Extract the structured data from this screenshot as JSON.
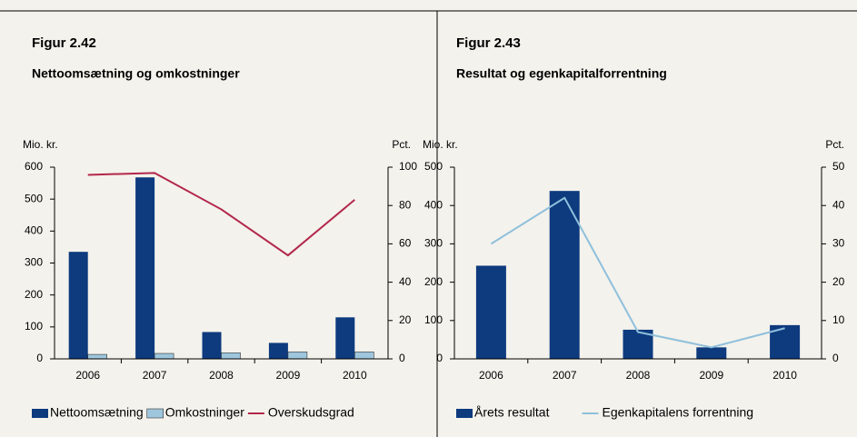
{
  "chart_data": [
    {
      "type": "bar",
      "title": "Figur 2.42",
      "subtitle": "Nettoomsætning og omkostninger",
      "ylabel": "Mio. kr.",
      "y2label": "Pct.",
      "categories": [
        "2006",
        "2007",
        "2008",
        "2009",
        "2010"
      ],
      "series": [
        {
          "name": "Nettoomsætning",
          "color": "#0e3a7e",
          "values": [
            335,
            568,
            84,
            50,
            130
          ]
        },
        {
          "name": "Omkostninger",
          "color": "#9ec6dd",
          "values": [
            14,
            17,
            19,
            22,
            22
          ]
        },
        {
          "name": "Overskudsgrad",
          "color": "#b3264b",
          "type": "line",
          "axis": "y2",
          "values": [
            96,
            97,
            78,
            54,
            83
          ]
        }
      ],
      "ylim": [
        0,
        600
      ],
      "yticks": [
        0,
        100,
        200,
        300,
        400,
        500,
        600
      ],
      "y2lim": [
        0,
        100
      ],
      "y2ticks": [
        0,
        20,
        40,
        60,
        80,
        100
      ],
      "grid": false
    },
    {
      "type": "bar",
      "title": "Figur 2.43",
      "subtitle": "Resultat og egenkapitalforrentning",
      "ylabel": "Mio. kr.",
      "y2label": "Pct.",
      "categories": [
        "2006",
        "2007",
        "2008",
        "2009",
        "2010"
      ],
      "series": [
        {
          "name": "Årets resultat",
          "color": "#0e3a7e",
          "values": [
            243,
            438,
            76,
            30,
            88
          ]
        },
        {
          "name": "Egenkapitalens forrentning",
          "color": "#8fc0dc",
          "type": "line",
          "axis": "y2",
          "values": [
            30,
            42,
            7,
            3,
            8
          ]
        }
      ],
      "ylim": [
        0,
        500
      ],
      "yticks": [
        0,
        100,
        200,
        300,
        400,
        500
      ],
      "y2lim": [
        0,
        50
      ],
      "y2ticks": [
        0,
        10,
        20,
        30,
        40,
        50
      ],
      "grid": false
    }
  ]
}
